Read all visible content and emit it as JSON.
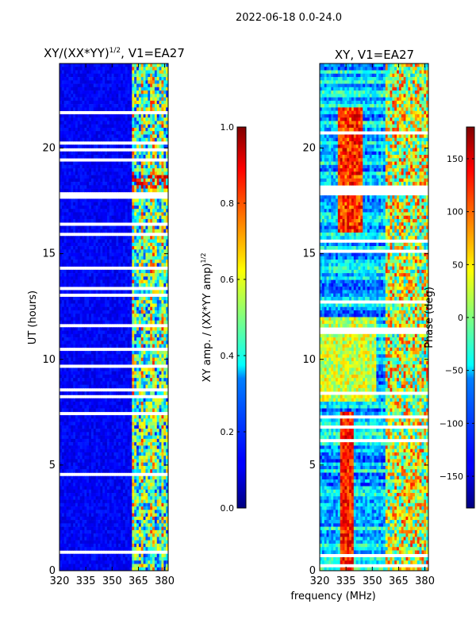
{
  "suptitle": "2022-06-18 0.0-24.0",
  "xlabel_shared": "frequency (MHz)",
  "chart_data": [
    {
      "type": "heatmap",
      "title_main": "XY/(XX*YY)",
      "title_sup": "1/2",
      "title_rest": ", V1=EA27",
      "ylabel": "UT (hours)",
      "xlim": [
        320,
        382
      ],
      "ylim": [
        0,
        24
      ],
      "xticks": [
        320,
        335,
        350,
        365,
        380
      ],
      "yticks": [
        0,
        5,
        10,
        15,
        20
      ],
      "colorbar": {
        "label_main": "XY amp. / (XX*YY amp)",
        "label_sup": "1/2",
        "range": [
          0.0,
          1.0
        ],
        "ticks": [
          0.0,
          0.2,
          0.4,
          0.6,
          0.8,
          1.0
        ],
        "tick_labels": [
          "0.0",
          "0.2",
          "0.4",
          "0.6",
          "0.8",
          "1.0"
        ],
        "colormap": "jet"
      }
    },
    {
      "type": "heatmap",
      "title_main": "XY, V1=EA27",
      "ylabel": "",
      "xlim": [
        320,
        382
      ],
      "ylim": [
        0,
        24
      ],
      "xticks": [
        320,
        335,
        350,
        365,
        380
      ],
      "yticks": [
        0,
        5,
        10,
        15,
        20
      ],
      "colorbar": {
        "label_main": "Phase (deg)",
        "range": [
          -180,
          180
        ],
        "ticks": [
          -150,
          -100,
          -50,
          0,
          50,
          100,
          150
        ],
        "tick_labels": [
          "−150",
          "−100",
          "−50",
          "0",
          "50",
          "100",
          "150"
        ],
        "colormap": "jet"
      }
    }
  ]
}
